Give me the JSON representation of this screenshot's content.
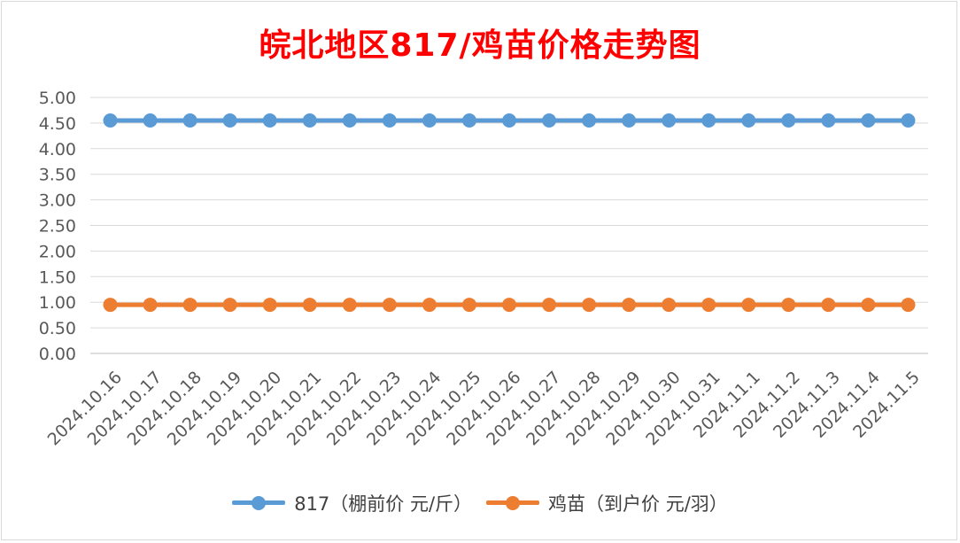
{
  "chart_data": {
    "type": "line",
    "title": "皖北地区817/鸡苗价格走势图",
    "xlabel": "",
    "ylabel": "",
    "categories": [
      "2024.10.16",
      "2024.10.17",
      "2024.10.18",
      "2024.10.19",
      "2024.10.20",
      "2024.10.21",
      "2024.10.22",
      "2024.10.23",
      "2024.10.24",
      "2024.10.25",
      "2024.10.26",
      "2024.10.27",
      "2024.10.28",
      "2024.10.29",
      "2024.10.30",
      "2024.10.31",
      "2024.11.1",
      "2024.11.2",
      "2024.11.3",
      "2024.11.4",
      "2024.11.5"
    ],
    "y_ticks": [
      "0.00",
      "0.50",
      "1.00",
      "1.50",
      "2.00",
      "2.50",
      "3.00",
      "3.50",
      "4.00",
      "4.50",
      "5.00"
    ],
    "ylim": [
      0,
      5
    ],
    "grid": true,
    "legend_position": "bottom",
    "series": [
      {
        "name": "817（棚前价 元/斤）",
        "color": "#5b9bd5",
        "values": [
          4.55,
          4.55,
          4.55,
          4.55,
          4.55,
          4.55,
          4.55,
          4.55,
          4.55,
          4.55,
          4.55,
          4.55,
          4.55,
          4.55,
          4.55,
          4.55,
          4.55,
          4.55,
          4.55,
          4.55,
          4.55
        ]
      },
      {
        "name": "鸡苗（到户价 元/羽）",
        "color": "#ed7d31",
        "values": [
          0.95,
          0.95,
          0.95,
          0.95,
          0.95,
          0.95,
          0.95,
          0.95,
          0.95,
          0.95,
          0.95,
          0.95,
          0.95,
          0.95,
          0.95,
          0.95,
          0.95,
          0.95,
          0.95,
          0.95,
          0.95
        ]
      }
    ]
  }
}
